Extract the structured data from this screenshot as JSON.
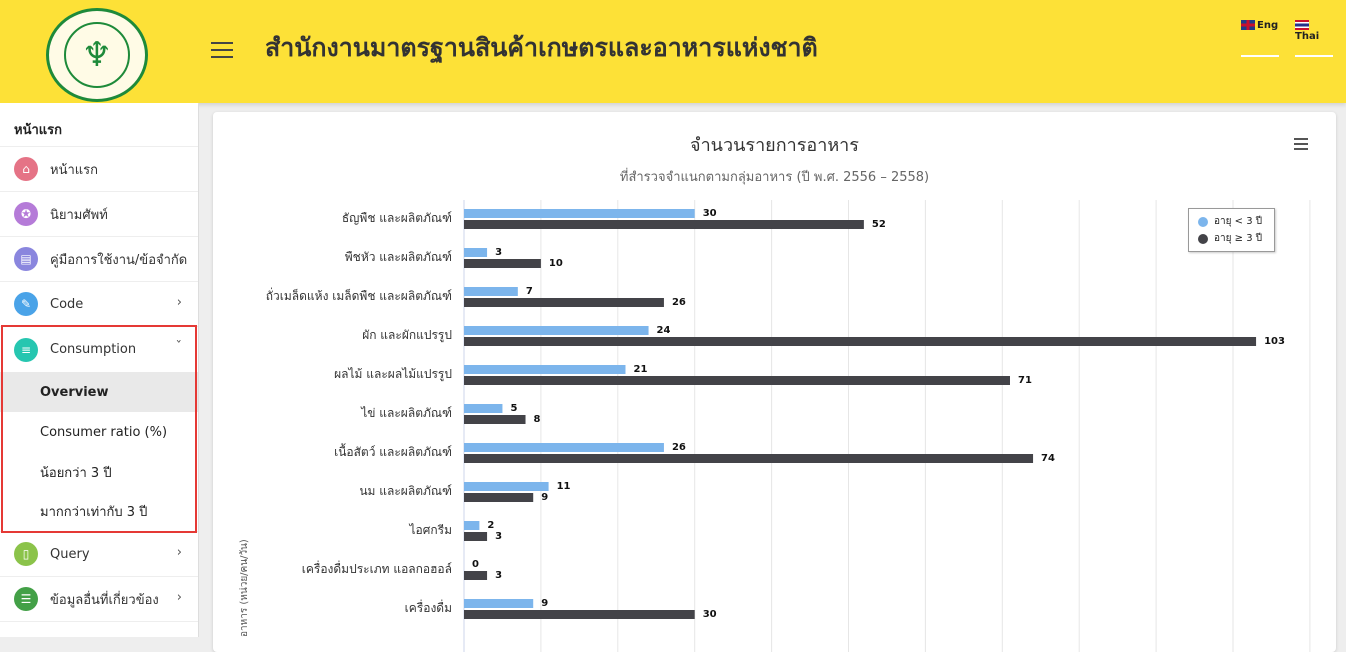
{
  "header": {
    "title": "สำนักงานมาตรฐานสินค้าเกษตรและอาหารแห่งชาติ",
    "lang_eng": "Eng",
    "lang_thai": "Thai"
  },
  "sidebar": {
    "heading": "หน้าแรก",
    "items": [
      {
        "label": "หน้าแรก",
        "color": "#e57386"
      },
      {
        "label": "นิยามศัพท์",
        "color": "#b57bd8"
      },
      {
        "label": "คู่มือการใช้งาน/ข้อจำกัด",
        "color": "#8a86de"
      },
      {
        "label": "Code",
        "color": "#4aa3e8"
      },
      {
        "label": "Consumption",
        "color": "#26c6b0"
      }
    ],
    "consumption_sub": [
      "Overview",
      "Consumer ratio (%)",
      "น้อยกว่า 3 ปี",
      "มากกว่าเท่ากับ 3 ปี"
    ],
    "items_after": [
      {
        "label": "Query",
        "color": "#8bc34a"
      },
      {
        "label": "ข้อมูลอื่นที่เกี่ยวข้อง",
        "color": "#43a047"
      }
    ]
  },
  "chart_data": {
    "type": "bar",
    "orientation": "horizontal",
    "title": "จำนวนรายการอาหาร",
    "subtitle": "ที่สำรวจจำแนกตามกลุ่มอาหาร (ปี พ.ศ. 2556 – 2558)",
    "ylabel": "อาหาร (หน่วย/คน/วัน)",
    "categories": [
      "ธัญพืช และผลิตภัณฑ์",
      "พืชหัว และผลิตภัณฑ์",
      "ถั่วเมล็ดแห้ง เมล็ดพืช และผลิตภัณฑ์",
      "ผัก และผักแปรรูป",
      "ผลไม้ และผลไม้แปรรูป",
      "ไข่ และผลิตภัณฑ์",
      "เนื้อสัตว์ และผลิตภัณฑ์",
      "นม และผลิตภัณฑ์",
      "ไอศกรีม",
      "เครื่องดื่มประเภท แอลกอฮอล์",
      "เครื่องดื่ม"
    ],
    "series": [
      {
        "name": "อายุ < 3 ปี",
        "color": "#7cb5ec",
        "values": [
          30,
          3,
          7,
          24,
          21,
          5,
          26,
          11,
          2,
          0,
          9
        ]
      },
      {
        "name": "อายุ ≥ 3 ปี",
        "color": "#434348",
        "values": [
          52,
          10,
          26,
          103,
          71,
          8,
          74,
          9,
          3,
          3,
          30
        ]
      }
    ],
    "xlim": [
      0,
      110
    ],
    "grid": true,
    "legend_position": "top-right"
  }
}
